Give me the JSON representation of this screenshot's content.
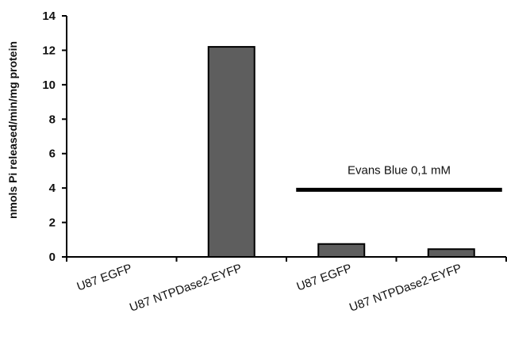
{
  "chart_data": {
    "type": "bar",
    "title": "",
    "xlabel": "",
    "ylabel": "nmols Pi released/min/mg protein",
    "ylim": [
      0,
      14
    ],
    "yticks": [
      0,
      2,
      4,
      6,
      8,
      10,
      12,
      14
    ],
    "grid": false,
    "categories": [
      "U87 EGFP",
      "U87 NTPDase2-EYFP",
      "U87 EGFP",
      "U87 NTPDase2-EYFP"
    ],
    "values": [
      0,
      12.2,
      0.75,
      0.45
    ],
    "bar_color": "#5e5e5e",
    "annotation": {
      "text": "Evans Blue 0,1 mM",
      "applies_to_categories": [
        2,
        3
      ],
      "line_value": 3.9
    }
  }
}
